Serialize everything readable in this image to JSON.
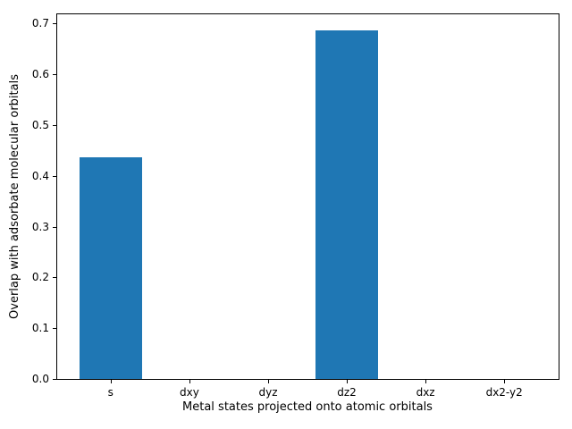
{
  "figure": {
    "background": "#ffffff"
  },
  "chart_data": {
    "type": "bar",
    "categories": [
      "s",
      "dxy",
      "dyz",
      "dz2",
      "dxz",
      "dx2-y2"
    ],
    "values": [
      0.437,
      0,
      0,
      0.686,
      0,
      0
    ],
    "xlabel": "Metal states projected onto atomic orbitals",
    "ylabel": "Overlap with adsorbate molecular orbitals",
    "ylim": [
      0,
      0.72
    ],
    "yticks": [
      0.0,
      0.1,
      0.2,
      0.3,
      0.4,
      0.5,
      0.6,
      0.7
    ],
    "ytick_labels": [
      "0.0",
      "0.1",
      "0.2",
      "0.3",
      "0.4",
      "0.5",
      "0.6",
      "0.7"
    ],
    "bar_color": "#1f77b4",
    "axis_color": "#000000",
    "text_color": "#000000",
    "grid": false,
    "legend": null
  }
}
